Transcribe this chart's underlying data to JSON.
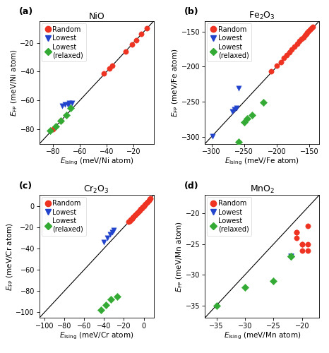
{
  "panels": [
    {
      "label": "(a)",
      "title": "NiO",
      "xlabel": "$E_{\\mathsf{Ising}}$ (meV/Ni atom)",
      "ylabel": "$E_{\\mathsf{FP}}$ (meV/Ni atom)",
      "xlim": [
        -90,
        -5
      ],
      "ylim": [
        -90,
        -5
      ],
      "xticks": [
        -80,
        -60,
        -40,
        -20
      ],
      "yticks": [
        -80,
        -60,
        -40,
        -20
      ],
      "random_x": [
        -80,
        -74,
        -42,
        -38,
        -36,
        -26,
        -21,
        -18,
        -14,
        -10
      ],
      "random_y": [
        -80,
        -74,
        -41,
        -38,
        -36,
        -26,
        -21,
        -18,
        -14,
        -10
      ],
      "blue_x": [
        -73,
        -71,
        -69,
        -68,
        -66
      ],
      "blue_y": [
        -64,
        -63,
        -63,
        -62,
        -62
      ],
      "green_x": [
        -82,
        -78,
        -74,
        -70,
        -67
      ],
      "green_y": [
        -81,
        -78,
        -74,
        -70,
        -65
      ]
    },
    {
      "label": "(b)",
      "title": "Fe$_2$O$_3$",
      "xlabel": "$E_{\\mathsf{Ising}}$ (meV/Fe atom)",
      "ylabel": "$E_{\\mathsf{FP}}$ (meV/Fe atom)",
      "xlim": [
        -310,
        -135
      ],
      "ylim": [
        -310,
        -135
      ],
      "xticks": [
        -300,
        -250,
        -200,
        -150
      ],
      "yticks": [
        -300,
        -250,
        -200,
        -150
      ],
      "random_x": [
        -209,
        -200,
        -194,
        -189,
        -185,
        -181,
        -177,
        -173,
        -169,
        -165,
        -162,
        -159,
        -157,
        -155,
        -153,
        -151,
        -149,
        -147,
        -145
      ],
      "random_y": [
        -207,
        -199,
        -193,
        -187,
        -183,
        -179,
        -175,
        -171,
        -167,
        -163,
        -160,
        -158,
        -155,
        -153,
        -151,
        -149,
        -147,
        -145,
        -143
      ],
      "blue_x": [
        -299,
        -268,
        -265,
        -262,
        -258
      ],
      "blue_y": [
        -299,
        -264,
        -261,
        -259,
        -231
      ],
      "green_x": [
        -258,
        -250,
        -245,
        -238,
        -221
      ],
      "green_y": [
        -307,
        -279,
        -274,
        -269,
        -251
      ]
    },
    {
      "label": "(c)",
      "title": "Cr$_2$O$_3$",
      "xlabel": "$E_{\\mathsf{Ising}}$ (meV/Cr atom)",
      "ylabel": "$E_{\\mathsf{FP}}$ (meV/Cr atom)",
      "xlim": [
        -105,
        10
      ],
      "ylim": [
        -105,
        10
      ],
      "xticks": [
        -100,
        -80,
        -60,
        -40,
        -20,
        0
      ],
      "yticks": [
        -100,
        -80,
        -60,
        -40,
        -20,
        0
      ],
      "random_x": [
        7,
        6,
        5,
        4,
        3,
        2,
        1,
        0,
        -1,
        -2,
        -3,
        -4,
        -5,
        -6,
        -7,
        -8,
        -9,
        -10,
        -11,
        -12,
        -13,
        -14,
        -15
      ],
      "random_y": [
        7,
        6,
        5,
        4,
        3,
        2,
        1,
        0,
        -1,
        -2,
        -3,
        -4,
        -5,
        -6,
        -7,
        -8,
        -9,
        -10,
        -11,
        -12,
        -13,
        -14,
        -15
      ],
      "blue_x": [
        -40,
        -37,
        -34,
        -32,
        -30
      ],
      "blue_y": [
        -34,
        -30,
        -27,
        -25,
        -23
      ],
      "green_x": [
        -43,
        -38,
        -33,
        -27
      ],
      "green_y": [
        -98,
        -93,
        -88,
        -85
      ]
    },
    {
      "label": "(d)",
      "title": "MnO$_2$",
      "xlabel": "$E_{\\mathsf{Ising}}$ (meV/Mn atom)",
      "ylabel": "$E_{\\mathsf{FP}}$ (meV/Mn atom)",
      "xlim": [
        -37,
        -17
      ],
      "ylim": [
        -37,
        -17
      ],
      "xticks": [
        -35,
        -30,
        -25,
        -20
      ],
      "yticks": [
        -35,
        -30,
        -25,
        -20
      ],
      "random_x": [
        -21,
        -21,
        -20,
        -20,
        -20,
        -19,
        -19,
        -21,
        -19
      ],
      "random_y": [
        -23,
        -24,
        -25,
        -25,
        -26,
        -26,
        -25,
        -23,
        -22
      ],
      "blue_x": [
        -22,
        -22,
        -22
      ],
      "blue_y": [
        -27,
        -27,
        -27
      ],
      "green_x": [
        -35,
        -30,
        -25,
        -22,
        -22
      ],
      "green_y": [
        -35,
        -32,
        -31,
        -27,
        -27
      ]
    }
  ],
  "red_color": "#EE3322",
  "blue_color": "#2244CC",
  "green_color": "#33AA33",
  "marker_size_scatter": 28,
  "marker_size_legend": 6,
  "legend_fontsize": 7,
  "axis_fontsize": 7.5,
  "title_fontsize": 9,
  "label_fontsize": 9
}
